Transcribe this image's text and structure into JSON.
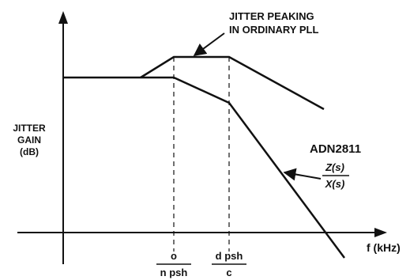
{
  "diagram": {
    "annotation_peaking": [
      "JITTER PEAKING",
      "IN ORDINARY PLL"
    ],
    "y_axis_label": [
      "JITTER",
      "GAIN",
      "(dB)"
    ],
    "x_axis_label": "f (kHz)",
    "device_label": "ADN2811",
    "transfer_fraction": {
      "numerator": "Z(s)",
      "denominator": "X(s)"
    },
    "tick_1": {
      "numerator": "o",
      "denominator": "n psh"
    },
    "tick_2": {
      "numerator": "d psh",
      "denominator": "c"
    },
    "colors": {
      "ink": "#111111",
      "background": "#ffffff"
    }
  }
}
